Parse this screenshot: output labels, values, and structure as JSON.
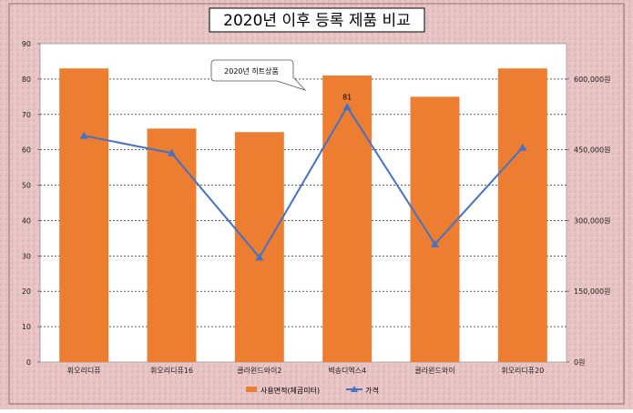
{
  "chart_data": {
    "type": "bar+line",
    "title": "2020년 이후 등록 제품 비교",
    "categories": [
      "휘오리디퓨",
      "휘오리디퓨16",
      "클라윈드와이2",
      "벽송디엑스4",
      "클라윈드와이",
      "휘오리디퓨20"
    ],
    "series": [
      {
        "name": "사용면적(제곱미터)",
        "kind": "bar",
        "axis": "left",
        "color": "#ED7D31",
        "values": [
          83,
          66,
          65,
          81,
          75,
          83
        ]
      },
      {
        "name": "가격",
        "kind": "line",
        "axis": "right",
        "color": "#4472C4",
        "values": [
          480000,
          443000,
          222000,
          541000,
          250000,
          455000
        ]
      }
    ],
    "y_left": {
      "min": 0,
      "max": 90,
      "ticks": [
        "0",
        "10",
        "20",
        "30",
        "40",
        "50",
        "60",
        "70",
        "80",
        "90"
      ]
    },
    "y_right": {
      "min": 0,
      "max": 675000,
      "ticks": [
        "0원",
        "150,000원",
        "300,000원",
        "450,000원",
        "600,000원"
      ],
      "tick_values": [
        0,
        150000,
        300000,
        450000,
        600000
      ]
    },
    "annotations": [
      {
        "text": "81",
        "category_index": 3
      },
      {
        "text": "2020년 히트상품",
        "category_index": 2
      }
    ],
    "legend_position": "bottom",
    "grid": true
  }
}
